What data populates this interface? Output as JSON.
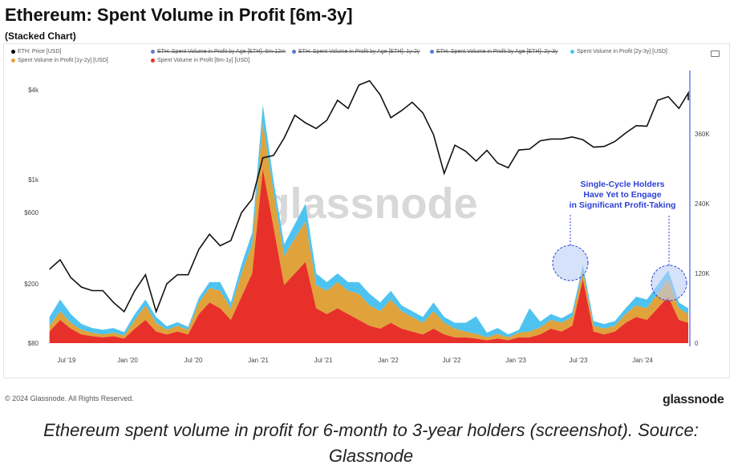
{
  "title": "Ethereum: Spent Volume in Profit [6m-3y]",
  "subtitle": "(Stacked Chart)",
  "legend": [
    {
      "label": "ETH: Price [USD]",
      "color": "#000000",
      "struck": false
    },
    {
      "label": "ETH: Spent Volume in Profit by Age [ETH]: 6m-12m",
      "color": "#5b7bd5",
      "struck": true
    },
    {
      "label": "ETH: Spent Volume in Profit by Age [ETH]: 1y-2y",
      "color": "#5b7bd5",
      "struck": true
    },
    {
      "label": "ETH: Spent Volume in Profit by Age [ETH]: 2y-3y",
      "color": "#5b7bd5",
      "struck": true
    },
    {
      "label": "Spent Volume in Profit [2y-3y] [USD]",
      "color": "#4fc3f0",
      "struck": false
    },
    {
      "label": "Spent Volume in Profit [1y-2y] [USD]",
      "color": "#e0a23a",
      "struck": false
    },
    {
      "label": "Spent Volume in Profit [6m-1y] [USD]",
      "color": "#e8302a",
      "struck": false
    }
  ],
  "camera_icon": "camera-icon",
  "watermark": "glassnode",
  "annotation": {
    "lines": [
      "Single-Cycle Holders",
      "Have Yet to Engage",
      "in Significant Profit-Taking"
    ],
    "color": "#2b3fd6"
  },
  "footer": {
    "copyright": "© 2024 Glassnode. All Rights Reserved.",
    "logo": "glassnode"
  },
  "caption": [
    "Ethereum spent volume in profit for 6-month to 3-year holders (screenshot). Source:",
    "Glassnode"
  ],
  "chart_data": {
    "type": "area",
    "stacked": true,
    "left_axis": {
      "scale": "log",
      "ticks": [
        "$80",
        "$200",
        "$600",
        "$1k",
        "$4k"
      ],
      "values": [
        80,
        200,
        600,
        1000,
        4000
      ]
    },
    "right_axis": {
      "ticks": [
        "0",
        "120K",
        "240K",
        "360K"
      ],
      "values": [
        0,
        120000,
        240000,
        360000
      ]
    },
    "x_ticks": [
      "Jul '19",
      "Jan '20",
      "Jul '20",
      "Jan '21",
      "Jul '21",
      "Jan '22",
      "Jul '22",
      "Jan '23",
      "Jul '23",
      "Jan '24"
    ],
    "months": [
      "2019-05",
      "2019-06",
      "2019-07",
      "2019-08",
      "2019-09",
      "2019-10",
      "2019-11",
      "2019-12",
      "2020-01",
      "2020-02",
      "2020-03",
      "2020-04",
      "2020-05",
      "2020-06",
      "2020-07",
      "2020-08",
      "2020-09",
      "2020-10",
      "2020-11",
      "2020-12",
      "2021-01",
      "2021-02",
      "2021-03",
      "2021-04",
      "2021-05",
      "2021-06",
      "2021-07",
      "2021-08",
      "2021-09",
      "2021-10",
      "2021-11",
      "2021-12",
      "2022-01",
      "2022-02",
      "2022-03",
      "2022-04",
      "2022-05",
      "2022-06",
      "2022-07",
      "2022-08",
      "2022-09",
      "2022-10",
      "2022-11",
      "2022-12",
      "2023-01",
      "2023-02",
      "2023-03",
      "2023-04",
      "2023-05",
      "2023-06",
      "2023-07",
      "2023-08",
      "2023-09",
      "2023-10",
      "2023-11",
      "2023-12",
      "2024-01",
      "2024-02",
      "2024-03",
      "2024-04",
      "2024-05",
      "2024-06"
    ],
    "price": [
      250,
      290,
      220,
      190,
      180,
      180,
      150,
      130,
      180,
      230,
      130,
      200,
      230,
      230,
      340,
      430,
      360,
      390,
      600,
      740,
      1400,
      1450,
      1900,
      2700,
      2400,
      2200,
      2500,
      3400,
      3000,
      4300,
      4600,
      3700,
      2600,
      2900,
      3300,
      2800,
      2000,
      1100,
      1700,
      1550,
      1330,
      1570,
      1290,
      1200,
      1580,
      1600,
      1820,
      1870,
      1870,
      1930,
      1850,
      1650,
      1670,
      1800,
      2050,
      2300,
      2280,
      3400,
      3600,
      3000,
      3800,
      3400
    ],
    "series": [
      {
        "name": "Spent Volume in Profit [6m-1y] [USD]",
        "color": "#e8302a",
        "values": [
          20000,
          40000,
          25000,
          15000,
          12000,
          10000,
          12000,
          8000,
          25000,
          40000,
          20000,
          15000,
          20000,
          15000,
          50000,
          70000,
          60000,
          40000,
          80000,
          120000,
          300000,
          200000,
          100000,
          120000,
          140000,
          60000,
          50000,
          60000,
          50000,
          40000,
          30000,
          25000,
          35000,
          25000,
          20000,
          15000,
          25000,
          15000,
          10000,
          10000,
          8000,
          5000,
          8000,
          5000,
          10000,
          10000,
          15000,
          25000,
          20000,
          30000,
          110000,
          20000,
          15000,
          20000,
          35000,
          45000,
          40000,
          60000,
          80000,
          40000,
          35000,
          20000
        ]
      },
      {
        "name": "Spent Volume in Profit [1y-2y] [USD]",
        "color": "#e0a23a",
        "values": [
          10000,
          15000,
          10000,
          8000,
          6000,
          5000,
          6000,
          5000,
          15000,
          25000,
          15000,
          8000,
          10000,
          8000,
          20000,
          25000,
          30000,
          20000,
          40000,
          50000,
          80000,
          60000,
          50000,
          60000,
          70000,
          40000,
          40000,
          45000,
          40000,
          45000,
          35000,
          30000,
          40000,
          30000,
          25000,
          20000,
          30000,
          20000,
          15000,
          10000,
          8000,
          5000,
          8000,
          5000,
          8000,
          10000,
          12000,
          15000,
          15000,
          15000,
          15000,
          10000,
          10000,
          10000,
          15000,
          20000,
          20000,
          25000,
          30000,
          20000,
          15000,
          10000
        ]
      },
      {
        "name": "Spent Volume in Profit [2y-3y] [USD]",
        "color": "#4fc3f0",
        "values": [
          15000,
          20000,
          15000,
          10000,
          8000,
          8000,
          8000,
          6000,
          10000,
          10000,
          10000,
          6000,
          6000,
          5000,
          8000,
          10000,
          15000,
          10000,
          15000,
          20000,
          30000,
          20000,
          20000,
          25000,
          30000,
          20000,
          15000,
          15000,
          15000,
          20000,
          20000,
          15000,
          15000,
          10000,
          10000,
          10000,
          15000,
          10000,
          10000,
          15000,
          30000,
          8000,
          10000,
          5000,
          5000,
          40000,
          10000,
          10000,
          8000,
          8000,
          10000,
          8000,
          8000,
          8000,
          10000,
          15000,
          15000,
          15000,
          15000,
          10000,
          10000,
          8000
        ]
      }
    ]
  }
}
